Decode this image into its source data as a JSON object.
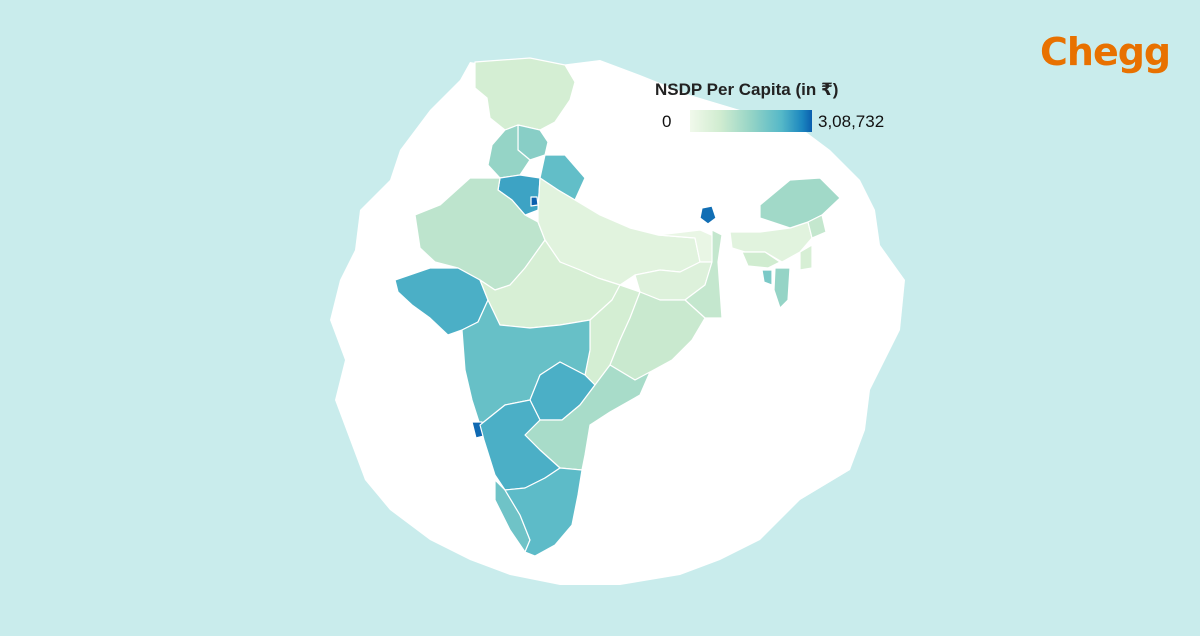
{
  "brand": {
    "logo_text": "Chegg",
    "logo_color": "#e87100"
  },
  "legend": {
    "title": "NSDP Per Capita (in ₹)",
    "min_label": "0",
    "max_label": "3,08,732",
    "color_low": "#f1f9eb",
    "color_high": "#0b5fae"
  },
  "map": {
    "subject": "India states choropleth",
    "background_color": "#c9ecec",
    "backdrop_color": "#ffffff",
    "regions": [
      {
        "name": "jammu-kashmir-ladakh",
        "shade": 0.22
      },
      {
        "name": "himachal-pradesh",
        "shade": 0.55
      },
      {
        "name": "punjab",
        "shade": 0.5
      },
      {
        "name": "uttarakhand",
        "shade": 0.7
      },
      {
        "name": "haryana",
        "shade": 0.82
      },
      {
        "name": "delhi",
        "shade": 1.0
      },
      {
        "name": "rajasthan",
        "shade": 0.33
      },
      {
        "name": "uttar-pradesh",
        "shade": 0.12
      },
      {
        "name": "bihar",
        "shade": 0.06
      },
      {
        "name": "sikkim",
        "shade": 0.97
      },
      {
        "name": "gujarat",
        "shade": 0.78
      },
      {
        "name": "madhya-pradesh",
        "shade": 0.2
      },
      {
        "name": "jharkhand",
        "shade": 0.15
      },
      {
        "name": "west-bengal",
        "shade": 0.3
      },
      {
        "name": "chhattisgarh",
        "shade": 0.22
      },
      {
        "name": "odisha",
        "shade": 0.28
      },
      {
        "name": "maharashtra",
        "shade": 0.68
      },
      {
        "name": "telangana",
        "shade": 0.78
      },
      {
        "name": "andhra-pradesh",
        "shade": 0.42
      },
      {
        "name": "goa",
        "shade": 0.98
      },
      {
        "name": "karnataka",
        "shade": 0.78
      },
      {
        "name": "kerala",
        "shade": 0.65
      },
      {
        "name": "tamil-nadu",
        "shade": 0.72
      },
      {
        "name": "assam",
        "shade": 0.12
      },
      {
        "name": "arunachal-pradesh",
        "shade": 0.45
      },
      {
        "name": "meghalaya",
        "shade": 0.25
      },
      {
        "name": "nagaland",
        "shade": 0.3
      },
      {
        "name": "manipur",
        "shade": 0.2
      },
      {
        "name": "mizoram",
        "shade": 0.5
      },
      {
        "name": "tripura",
        "shade": 0.6
      }
    ]
  }
}
